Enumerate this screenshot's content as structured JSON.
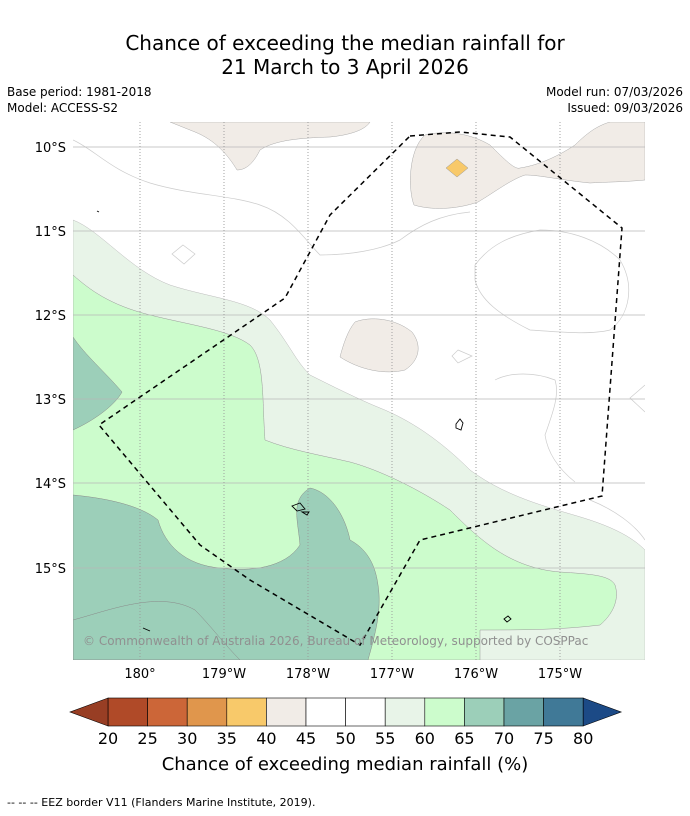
{
  "title": {
    "line1": "Chance of exceeding the median rainfall for",
    "line2": "21 March to 3 April 2026"
  },
  "meta": {
    "base_period": "Base period: 1981-2018",
    "model": "Model: ACCESS-S2",
    "model_run": "Model run: 07/03/2026",
    "issued": "Issued: 09/03/2026"
  },
  "map": {
    "lat_labels": [
      "10°S",
      "11°S",
      "12°S",
      "13°S",
      "14°S",
      "15°S"
    ],
    "lon_labels": [
      "180°",
      "179°W",
      "178°W",
      "177°W",
      "176°W",
      "175°W"
    ],
    "copyright": "© Commonwealth of Australia 2026, Bureau of Meteorology, supported by COSPPac"
  },
  "colorbar": {
    "ticks": [
      "20",
      "25",
      "30",
      "35",
      "40",
      "45",
      "50",
      "55",
      "60",
      "65",
      "70",
      "75",
      "80"
    ],
    "colors": [
      "#b04a28",
      "#cc6638",
      "#e0964c",
      "#f8c96a",
      "#f1ece7",
      "#ffffff",
      "#ffffff",
      "#e8f4e8",
      "#ccfccc",
      "#9ccfb9",
      "#6aa3a4",
      "#407997"
    ],
    "under_color": "#983e24",
    "over_color": "#1c4a86",
    "title": "Chance of exceeding median rainfall (%)"
  },
  "footnote": "--  --  -- EEZ border V11 (Flanders Marine Institute, 2019)."
}
